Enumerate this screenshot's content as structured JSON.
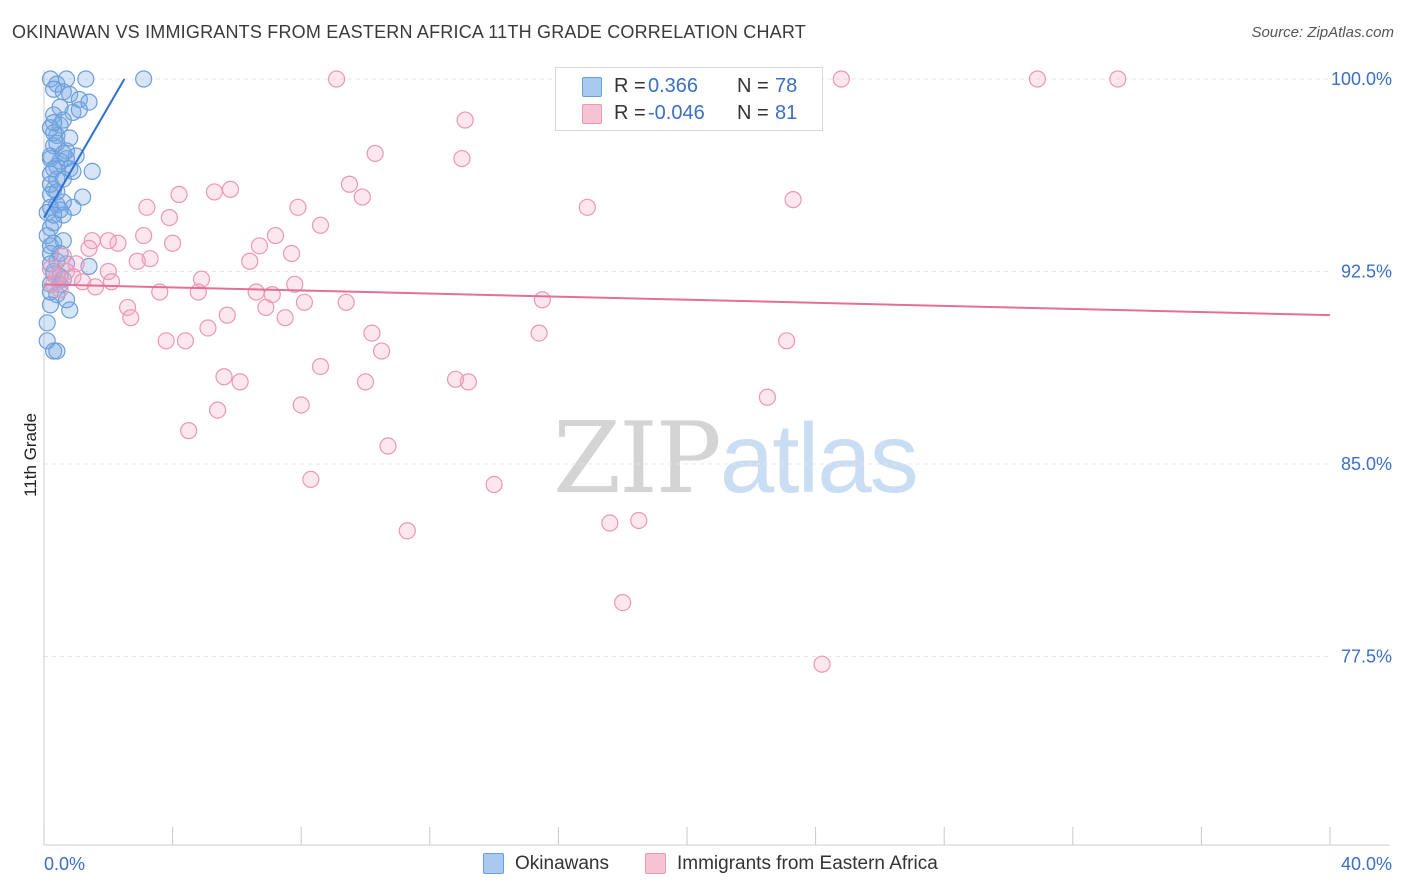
{
  "title": "OKINAWAN VS IMMIGRANTS FROM EASTERN AFRICA 11TH GRADE CORRELATION CHART",
  "source": "Source: ZipAtlas.com",
  "watermark": {
    "part1": "ZIP",
    "part2": "atlas"
  },
  "stats": {
    "row1": {
      "r_label": "R =",
      "r_value": "0.366",
      "n_label": "N =",
      "n_value": "78"
    },
    "row2": {
      "r_label": "R =",
      "r_value": "-0.046",
      "n_label": "N =",
      "n_value": "81"
    }
  },
  "legend": {
    "item1": "Okinawans",
    "item2": "Immigrants from Eastern Africa"
  },
  "colors": {
    "blue": "#6b9fdc",
    "blue_fill": "rgba(122,170,230,0.30)",
    "blue_line": "#2f6fd0",
    "pink": "#ec97b3",
    "pink_fill": "rgba(244,170,196,0.28)",
    "pink_line": "#e36f9a",
    "axis_text": "#3a6fc4",
    "grid": "#e6e6e6"
  },
  "chart_data": {
    "type": "scatter",
    "title": "OKINAWAN VS IMMIGRANTS FROM EASTERN AFRICA 11TH GRADE CORRELATION CHART",
    "xlabel": "",
    "ylabel": "11th Grade",
    "xlim": [
      0,
      40
    ],
    "ylim": [
      70,
      100.8
    ],
    "x_tick_labels": [
      {
        "value": 0,
        "label": "0.0%"
      },
      {
        "value": 40,
        "label": "40.0%"
      }
    ],
    "y_tick_labels": [
      {
        "value": 100,
        "label": "100.0%"
      },
      {
        "value": 92.5,
        "label": "92.5%"
      },
      {
        "value": 85,
        "label": "85.0%"
      },
      {
        "value": 77.5,
        "label": "77.5%"
      }
    ],
    "grid": true,
    "legend_position": "bottom",
    "series": [
      {
        "name": "Okinawans",
        "r": 0.366,
        "n": 78,
        "trend": [
          [
            0,
            94.6
          ],
          [
            2.5,
            100.0
          ]
        ],
        "points": [
          [
            0.2,
            100
          ],
          [
            0.4,
            99.8
          ],
          [
            0.7,
            100
          ],
          [
            0.8,
            99.4
          ],
          [
            1.1,
            99.2
          ],
          [
            1.3,
            100
          ],
          [
            1.4,
            99.1
          ],
          [
            3.1,
            100
          ],
          [
            0.3,
            99.6
          ],
          [
            0.5,
            98.9
          ],
          [
            0.9,
            98.7
          ],
          [
            0.3,
            98.6
          ],
          [
            0.2,
            98.1
          ],
          [
            0.6,
            98.4
          ],
          [
            0.4,
            97.8
          ],
          [
            0.3,
            97.4
          ],
          [
            0.7,
            97.2
          ],
          [
            1.0,
            97.0
          ],
          [
            0.2,
            96.9
          ],
          [
            0.4,
            96.6
          ],
          [
            0.5,
            96.8
          ],
          [
            0.8,
            96.5
          ],
          [
            0.2,
            96.3
          ],
          [
            0.6,
            96.1
          ],
          [
            0.3,
            95.7
          ],
          [
            1.5,
            96.4
          ],
          [
            0.2,
            95.5
          ],
          [
            0.4,
            95.1
          ],
          [
            0.9,
            95.0
          ],
          [
            0.6,
            94.7
          ],
          [
            0.2,
            94.2
          ],
          [
            1.2,
            95.4
          ],
          [
            0.3,
            94.4
          ],
          [
            0.1,
            93.9
          ],
          [
            0.6,
            93.7
          ],
          [
            0.2,
            93.2
          ],
          [
            0.7,
            92.8
          ],
          [
            1.4,
            92.7
          ],
          [
            0.3,
            92.5
          ],
          [
            0.2,
            92.0
          ],
          [
            0.5,
            92.3
          ],
          [
            0.4,
            91.6
          ],
          [
            0.2,
            91.2
          ],
          [
            0.8,
            91.0
          ],
          [
            0.1,
            90.5
          ],
          [
            0.1,
            89.8
          ],
          [
            0.3,
            89.4
          ],
          [
            0.4,
            89.4
          ],
          [
            0.2,
            97.0
          ],
          [
            0.7,
            96.9
          ],
          [
            0.4,
            96.1
          ],
          [
            0.2,
            95.9
          ],
          [
            0.6,
            95.2
          ],
          [
            0.5,
            94.9
          ],
          [
            0.3,
            93.6
          ],
          [
            0.4,
            92.9
          ],
          [
            0.3,
            92.4
          ],
          [
            0.5,
            92.0
          ],
          [
            0.2,
            91.7
          ],
          [
            0.9,
            96.4
          ],
          [
            0.6,
            99.5
          ],
          [
            0.5,
            98.2
          ],
          [
            0.3,
            97.9
          ],
          [
            0.4,
            97.5
          ],
          [
            0.2,
            95.0
          ],
          [
            0.3,
            94.7
          ],
          [
            0.5,
            93.2
          ],
          [
            0.6,
            92.2
          ],
          [
            0.1,
            94.8
          ],
          [
            0.2,
            93.5
          ],
          [
            1.1,
            98.8
          ],
          [
            0.8,
            97.7
          ],
          [
            0.3,
            96.5
          ],
          [
            0.4,
            95.6
          ],
          [
            0.6,
            97.1
          ],
          [
            0.3,
            98.3
          ],
          [
            0.2,
            92.8
          ],
          [
            0.7,
            91.4
          ]
        ]
      },
      {
        "name": "Immigrants from Eastern Africa",
        "r": -0.046,
        "n": 81,
        "trend": [
          [
            0,
            92.0
          ],
          [
            40,
            90.8
          ]
        ],
        "points": [
          [
            9.1,
            100
          ],
          [
            24.8,
            100
          ],
          [
            30.9,
            100
          ],
          [
            33.4,
            100
          ],
          [
            13.1,
            98.4
          ],
          [
            10.3,
            97.1
          ],
          [
            13.0,
            96.9
          ],
          [
            9.5,
            95.9
          ],
          [
            9.9,
            95.4
          ],
          [
            16.9,
            95.0
          ],
          [
            23.3,
            95.3
          ],
          [
            4.2,
            95.5
          ],
          [
            5.3,
            95.6
          ],
          [
            5.8,
            95.7
          ],
          [
            3.2,
            95.0
          ],
          [
            3.9,
            94.6
          ],
          [
            7.9,
            95.0
          ],
          [
            8.6,
            94.3
          ],
          [
            7.2,
            93.9
          ],
          [
            3.1,
            93.9
          ],
          [
            4.0,
            93.6
          ],
          [
            1.5,
            93.7
          ],
          [
            2.3,
            93.6
          ],
          [
            2.0,
            93.7
          ],
          [
            6.7,
            93.5
          ],
          [
            7.7,
            93.2
          ],
          [
            1.4,
            93.4
          ],
          [
            0.6,
            93.1
          ],
          [
            3.3,
            93.0
          ],
          [
            6.4,
            92.9
          ],
          [
            2.9,
            92.9
          ],
          [
            1.0,
            92.8
          ],
          [
            0.7,
            92.5
          ],
          [
            2.0,
            92.5
          ],
          [
            0.4,
            92.3
          ],
          [
            0.9,
            92.3
          ],
          [
            1.2,
            92.1
          ],
          [
            2.1,
            92.1
          ],
          [
            4.9,
            92.2
          ],
          [
            7.8,
            92.0
          ],
          [
            1.6,
            91.9
          ],
          [
            3.6,
            91.7
          ],
          [
            4.8,
            91.7
          ],
          [
            6.6,
            91.7
          ],
          [
            7.1,
            91.6
          ],
          [
            8.1,
            91.3
          ],
          [
            9.4,
            91.3
          ],
          [
            15.5,
            91.4
          ],
          [
            2.6,
            91.1
          ],
          [
            2.7,
            90.7
          ],
          [
            5.7,
            90.8
          ],
          [
            6.9,
            91.1
          ],
          [
            7.5,
            90.7
          ],
          [
            10.2,
            90.1
          ],
          [
            15.4,
            90.1
          ],
          [
            5.1,
            90.3
          ],
          [
            3.8,
            89.8
          ],
          [
            4.4,
            89.8
          ],
          [
            23.1,
            89.8
          ],
          [
            10.5,
            89.4
          ],
          [
            8.6,
            88.8
          ],
          [
            5.6,
            88.4
          ],
          [
            6.1,
            88.2
          ],
          [
            10.0,
            88.2
          ],
          [
            13.2,
            88.2
          ],
          [
            12.8,
            88.3
          ],
          [
            22.5,
            87.6
          ],
          [
            8.0,
            87.3
          ],
          [
            5.4,
            87.1
          ],
          [
            4.5,
            86.3
          ],
          [
            10.7,
            85.7
          ],
          [
            8.3,
            84.4
          ],
          [
            14.0,
            84.2
          ],
          [
            11.3,
            82.4
          ],
          [
            17.6,
            82.7
          ],
          [
            18.5,
            82.8
          ],
          [
            18.0,
            79.6
          ],
          [
            24.2,
            77.2
          ],
          [
            0.3,
            92.0
          ],
          [
            0.5,
            91.8
          ],
          [
            0.2,
            92.6
          ]
        ]
      }
    ]
  }
}
